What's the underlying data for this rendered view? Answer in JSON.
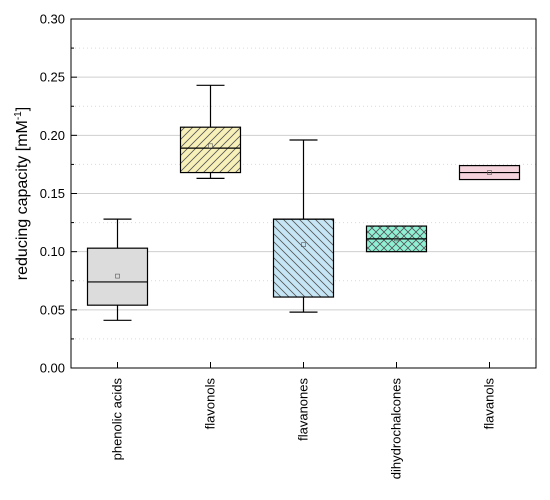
{
  "chart_data": {
    "type": "box",
    "ylabel": {
      "main": "reducing capacity [mM",
      "sup": "-1",
      "close": "]"
    },
    "ylim": [
      0,
      0.3
    ],
    "yticks": [
      "0.00",
      "0.05",
      "0.10",
      "0.15",
      "0.20",
      "0.25",
      "0.30"
    ],
    "grid": true,
    "categories": [
      "phenolic acids",
      "flavonols",
      "flavanones",
      "dihydrochalcones",
      "flavanols"
    ],
    "boxes": [
      {
        "whisker_low": 0.041,
        "q1": 0.054,
        "median": 0.074,
        "q3": 0.103,
        "whisker_high": 0.128,
        "mean": 0.079,
        "fill": "#dcdcdc",
        "pattern": "none"
      },
      {
        "whisker_low": 0.163,
        "q1": 0.168,
        "median": 0.189,
        "q3": 0.207,
        "whisker_high": 0.243,
        "mean": 0.191,
        "fill": "#f7f0b8",
        "pattern": "diagonal-up"
      },
      {
        "whisker_low": 0.048,
        "q1": 0.061,
        "median": 0.128,
        "q3": 0.128,
        "whisker_high": 0.196,
        "mean": 0.106,
        "fill": "#c6e6f5",
        "pattern": "diagonal-down"
      },
      {
        "whisker_low": 0.1,
        "q1": 0.1,
        "median": 0.111,
        "q3": 0.122,
        "whisker_high": 0.122,
        "mean": 0.111,
        "fill": "#8ff0d4",
        "pattern": "crosshatch"
      },
      {
        "whisker_low": 0.162,
        "q1": 0.162,
        "median": 0.168,
        "q3": 0.174,
        "whisker_high": 0.174,
        "mean": 0.168,
        "fill": "#f5d3dd",
        "pattern": "none"
      }
    ]
  }
}
